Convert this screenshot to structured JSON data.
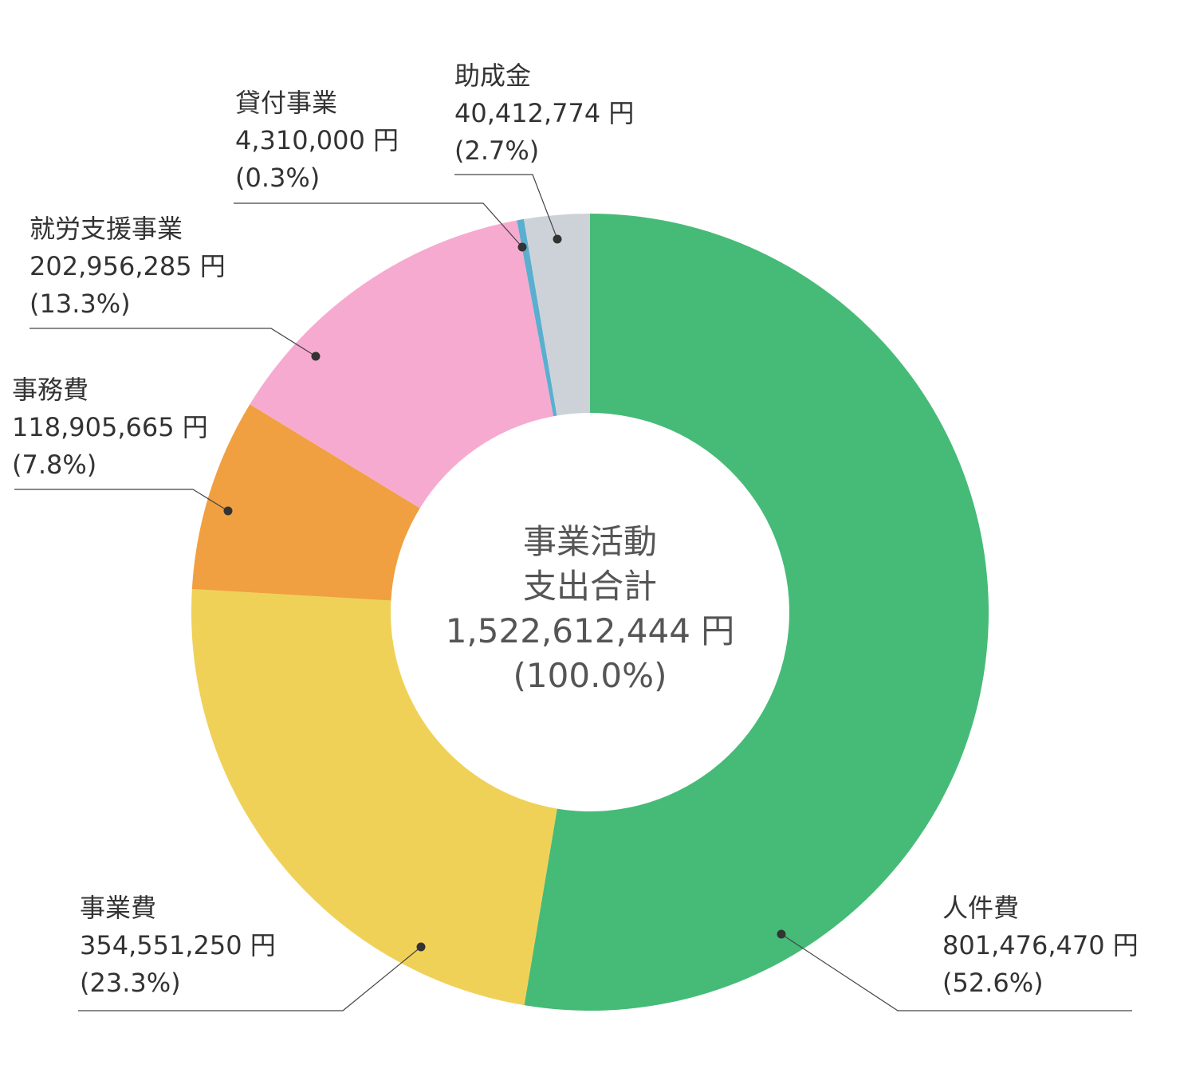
{
  "chart_data": {
    "type": "pie",
    "donut": true,
    "center": {
      "line1": "事業活動",
      "line2": "支出合計",
      "amount": "1,522,612,444 円",
      "percent": "(100.0%)"
    },
    "slices": [
      {
        "name": "人件費",
        "value": 801476470,
        "amount": "801,476,470 円",
        "percent": "(52.6%)",
        "color": "#45BB77"
      },
      {
        "name": "事業費",
        "value": 354551250,
        "amount": "354,551,250 円",
        "percent": "(23.3%)",
        "color": "#F0D158"
      },
      {
        "name": "事務費",
        "value": 118905665,
        "amount": "118,905,665 円",
        "percent": "(7.8%)",
        "color": "#F0A040"
      },
      {
        "name": "就労支援事業",
        "value": 202956285,
        "amount": "202,956,285 円",
        "percent": "(13.3%)",
        "color": "#F7AAD0"
      },
      {
        "name": "貸付事業",
        "value": 4310000,
        "amount": "4,310,000 円",
        "percent": "(0.3%)",
        "color": "#5AAFCF"
      },
      {
        "name": "助成金",
        "value": 40412774,
        "amount": "40,412,774 円",
        "percent": "(2.7%)",
        "color": "#CDD2D9"
      }
    ]
  }
}
